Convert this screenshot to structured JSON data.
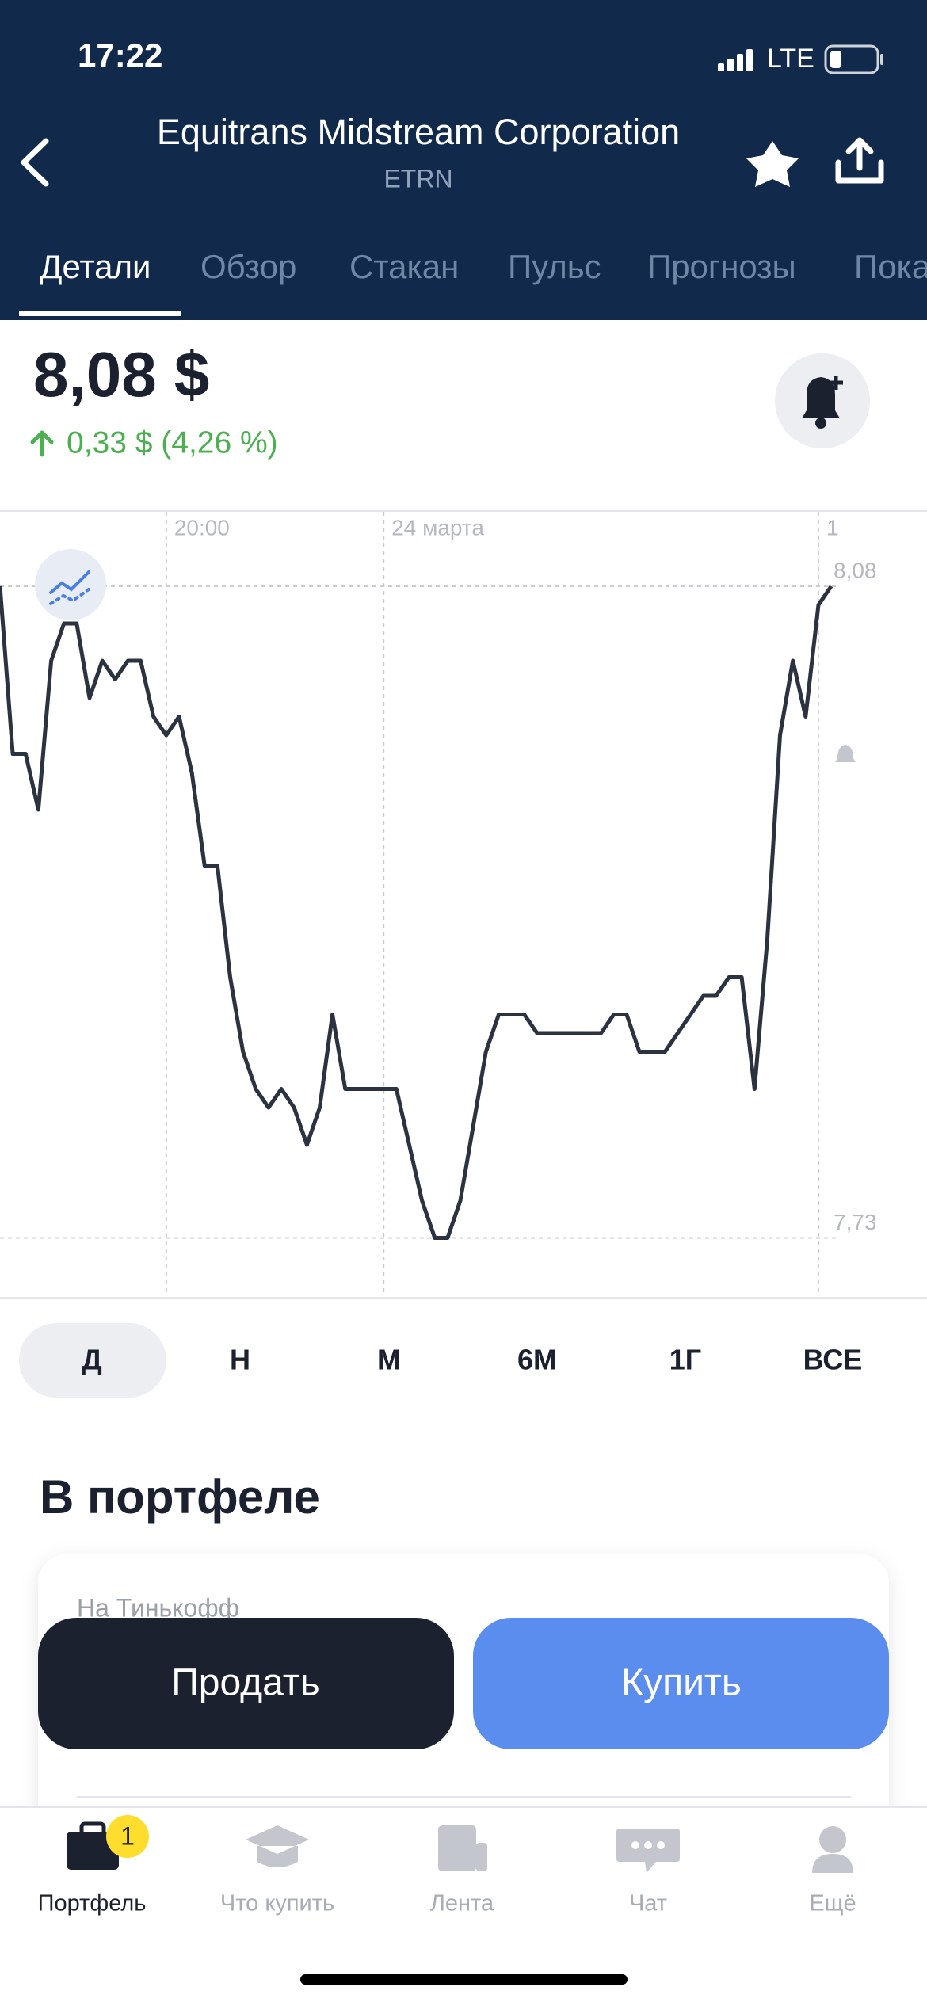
{
  "status_bar": {
    "time": "17:22",
    "network": "LTE"
  },
  "header": {
    "title": "Equitrans Midstream Corporation",
    "ticker": "ETRN"
  },
  "tabs": [
    "Детали",
    "Обзор",
    "Стакан",
    "Пульс",
    "Прогнозы",
    "Пока"
  ],
  "price": {
    "value": "8,08 $",
    "change": "0,33 $ (4,26 %)"
  },
  "chart_data": {
    "type": "line",
    "categories": [
      null,
      null,
      null,
      null,
      null,
      null,
      null,
      null,
      null,
      null,
      null,
      null,
      null,
      "20:00",
      null,
      null,
      null,
      null,
      null,
      null,
      null,
      null,
      null,
      null,
      null,
      null,
      null,
      null,
      null,
      null,
      "24 марта",
      null,
      null,
      null,
      null,
      null,
      null,
      null,
      null,
      null,
      null,
      null,
      null,
      null,
      null,
      null,
      null,
      null,
      null,
      null,
      null,
      null,
      null,
      null,
      null,
      null,
      null,
      null,
      null,
      null,
      null,
      null,
      null,
      null,
      "1",
      null
    ],
    "series": [
      {
        "color": "#2b3240",
        "values": [
          8.08,
          7.99,
          7.99,
          7.96,
          8.04,
          8.06,
          8.06,
          8.02,
          8.04,
          8.03,
          8.04,
          8.04,
          8.01,
          8.0,
          8.01,
          7.98,
          7.93,
          7.93,
          7.87,
          7.83,
          7.81,
          7.8,
          7.81,
          7.8,
          7.78,
          7.8,
          7.85,
          7.81,
          7.81,
          7.81,
          7.81,
          7.81,
          7.78,
          7.75,
          7.73,
          7.73,
          7.75,
          7.79,
          7.83,
          7.85,
          7.85,
          7.85,
          7.84,
          7.84,
          7.84,
          7.84,
          7.84,
          7.84,
          7.85,
          7.85,
          7.83,
          7.83,
          7.83,
          7.84,
          7.85,
          7.86,
          7.86,
          7.87,
          7.87,
          7.81,
          7.89,
          8.0,
          8.04,
          8.01,
          8.07,
          8.08
        ]
      }
    ],
    "ylim": [
      7.7,
      8.12
    ],
    "yticks": [
      {
        "value": 8.08,
        "label": "8,08"
      },
      {
        "value": 7.73,
        "label": "7,73"
      }
    ],
    "grid": true
  },
  "periods": [
    "Д",
    "Н",
    "М",
    "6М",
    "1Г",
    "ВСЕ"
  ],
  "portfolio": {
    "title": "В портфеле",
    "broker": "На Тинькофф"
  },
  "actions": {
    "sell": "Продать",
    "buy": "Купить"
  },
  "nav": {
    "items": [
      "Портфель",
      "Что купить",
      "Лента",
      "Чат",
      "Ещё"
    ],
    "badge": "1"
  }
}
